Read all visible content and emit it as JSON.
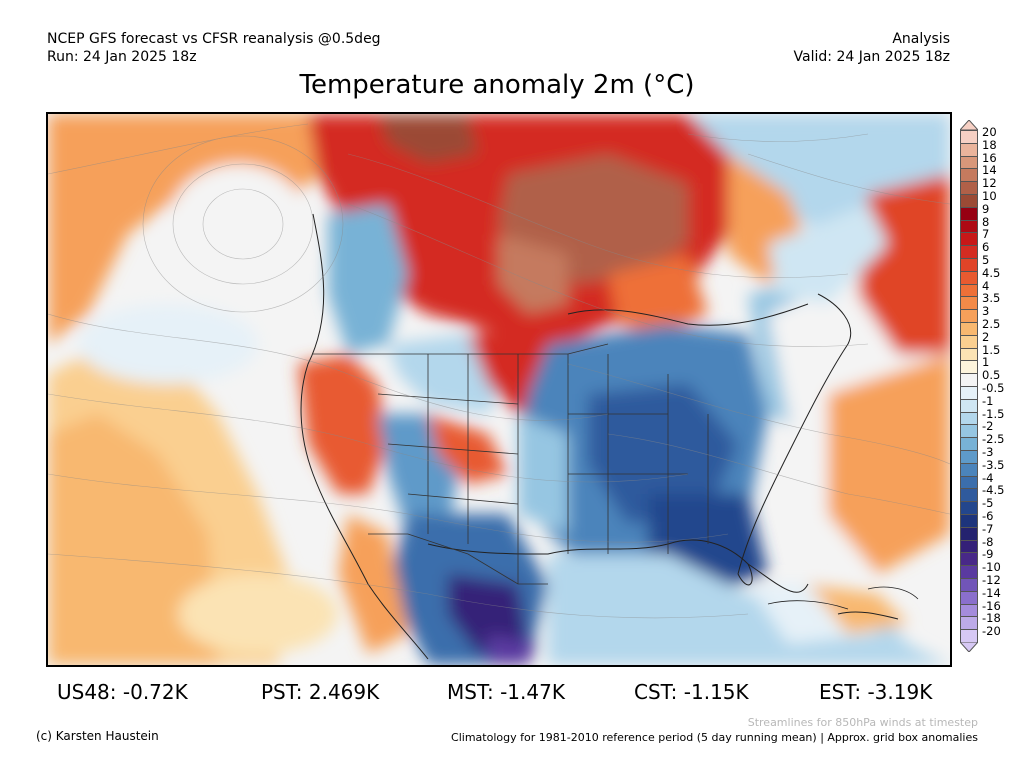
{
  "header": {
    "line1_left": "NCEP GFS forecast vs CFSR reanalysis @0.5deg",
    "line2_left": "Run: 24 Jan 2025 18z",
    "line1_right": "Analysis",
    "line2_right": "Valid: 24 Jan 2025 18z"
  },
  "title": "Temperature anomaly 2m (°C)",
  "legend": {
    "labels": [
      "20",
      "18",
      "16",
      "14",
      "12",
      "10",
      "9",
      "8",
      "7",
      "6",
      "5",
      "4.5",
      "4",
      "3.5",
      "3",
      "2.5",
      "2",
      "1.5",
      "1",
      "0.5",
      "-0.5",
      "-1",
      "-1.5",
      "-2",
      "-2.5",
      "-3",
      "-3.5",
      "-4",
      "-4.5",
      "-5",
      "-6",
      "-7",
      "-8",
      "-9",
      "-10",
      "-12",
      "-14",
      "-16",
      "-18",
      "-20"
    ],
    "colors": [
      "#f6d0c4",
      "#eab49c",
      "#d8977a",
      "#c57a5e",
      "#b06048",
      "#9b4a35",
      "#960012",
      "#ae0a14",
      "#c71818",
      "#d42c22",
      "#e04428",
      "#e85a30",
      "#ee7038",
      "#f38a48",
      "#f6a05a",
      "#f8b870",
      "#facf90",
      "#fbe3b4",
      "#fdf4dc",
      "#f4f4f4",
      "#e6f1f8",
      "#cfe6f3",
      "#b3d7ec",
      "#96c6e2",
      "#78b2d6",
      "#5e9ac9",
      "#4b84bb",
      "#3b6eac",
      "#2f5a9d",
      "#23468d",
      "#1d347c",
      "#24226f",
      "#342078",
      "#482888",
      "#5a3aa0",
      "#7155b8",
      "#8a6fcc",
      "#a48cdc",
      "#bcaae8",
      "#d6c8f4"
    ]
  },
  "stats": [
    {
      "label": "US48: -0.72K"
    },
    {
      "label": "PST: 2.469K"
    },
    {
      "label": "MST: -1.47K"
    },
    {
      "label": "CST: -1.15K"
    },
    {
      "label": "EST: -3.19K"
    }
  ],
  "footer": {
    "streamlines_note": "Streamlines for 850hPa winds at timestep",
    "climatology_note": "Climatology for 1981-2010 reference period (5 day running mean) | Approx. grid box anomalies",
    "credit": "(c) Karsten Haustein"
  }
}
